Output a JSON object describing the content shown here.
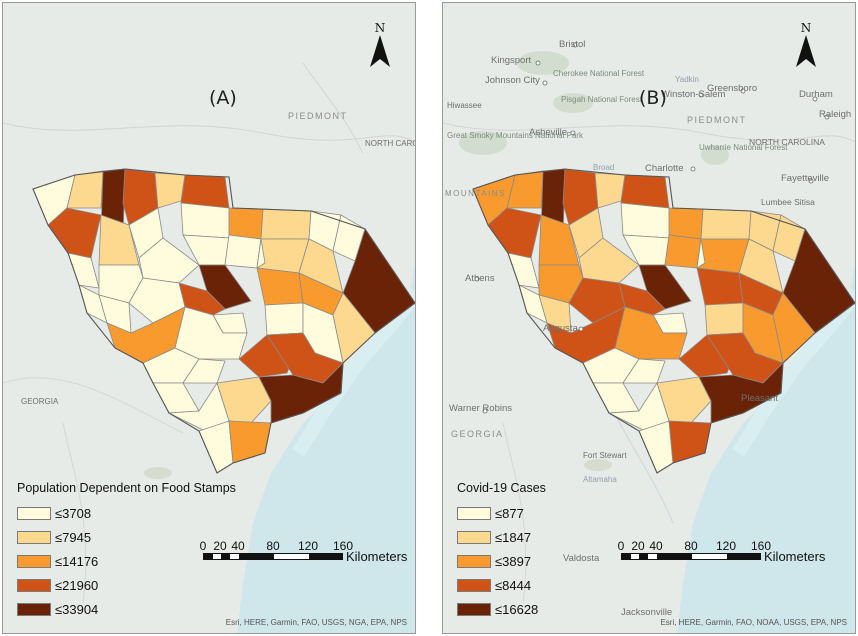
{
  "panels": [
    {
      "label": "(A)",
      "north_label": "N",
      "legend_title": "Population Dependent on Food Stamps",
      "legend": [
        {
          "label": "≤3708",
          "color": "#fefcdc"
        },
        {
          "label": "≤7945",
          "color": "#fcd98e"
        },
        {
          "label": "≤14176",
          "color": "#f99a2f"
        },
        {
          "label": "≤21960",
          "color": "#cf5216"
        },
        {
          "label": "≤33904",
          "color": "#6b2307"
        }
      ],
      "scale_ticks": [
        "0",
        "20",
        "40",
        "80",
        "120",
        "160"
      ],
      "scale_unit": "Kilometers",
      "attribution": "Esri, HERE, Garmin, FAO, USGS, NGA, EPA, NPS"
    },
    {
      "label": "(B)",
      "north_label": "N",
      "legend_title": "Covid-19 Cases",
      "legend": [
        {
          "label": "≤877",
          "color": "#fefcdc"
        },
        {
          "label": "≤1847",
          "color": "#fcd98e"
        },
        {
          "label": "≤3897",
          "color": "#f99a2f"
        },
        {
          "label": "≤8444",
          "color": "#cf5216"
        },
        {
          "label": "≤16628",
          "color": "#6b2307"
        }
      ],
      "scale_ticks": [
        "0",
        "20",
        "40",
        "80",
        "120",
        "160"
      ],
      "scale_unit": "Kilometers",
      "attribution": "Esri, HERE, Garmin, FAO, NOAA, USGS, EPA, NPS"
    }
  ],
  "basemap_places_b": [
    "Bristol",
    "Kingsport",
    "Johnson City",
    "Cherokee National Forest",
    "Winston-Salem",
    "Greensboro",
    "Durham",
    "Raleigh",
    "Pisgah National Forest",
    "Asheville",
    "PIEDMONT",
    "NORTH CAROLINA",
    "Great Smoky Mountains National Park",
    "Charlotte",
    "Uwharrie National Forest",
    "Fayetteville",
    "Lumbee Sitisa",
    "Athens",
    "Augusta",
    "Pleasant",
    "Warner Robins",
    "GEORGIA",
    "Fort Stewart",
    "Valdosta",
    "Jacksonville",
    "Yadkin",
    "Broad",
    "MOUNTAINS",
    "Altamaha",
    "Hiwassee"
  ],
  "basemap_places_a": [
    "PIEDMONT",
    "NORTH CAROLINA",
    "GEORGIA"
  ]
}
